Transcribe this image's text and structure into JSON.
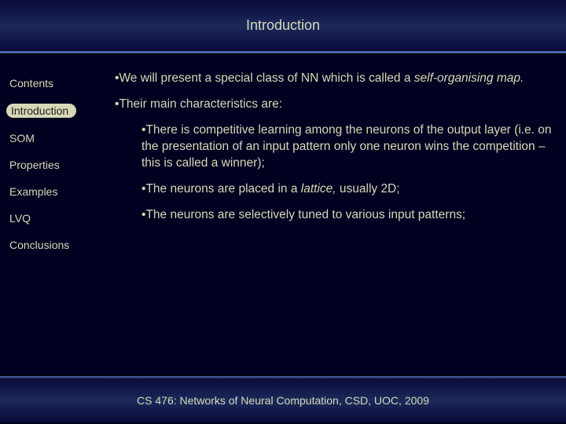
{
  "header": {
    "title": "Introduction"
  },
  "sidebar": {
    "items": [
      {
        "label": "Contents",
        "active": false
      },
      {
        "label": "Introduction",
        "active": true
      },
      {
        "label": "SOM",
        "active": false
      },
      {
        "label": "Properties",
        "active": false
      },
      {
        "label": "Examples",
        "active": false
      },
      {
        "label": "LVQ",
        "active": false
      },
      {
        "label": "Conclusions",
        "active": false
      }
    ]
  },
  "content": {
    "p1_a": "We will present a special class of NN which is called a ",
    "p1_italic": "self-organising map.",
    "p2": "Their main characteristics are:",
    "s1": "There is competitive learning among the neurons of the output layer (i.e. on the presentation of an input pattern only one neuron wins the competition – this is called a winner);",
    "s2_a": "The neurons are placed in a ",
    "s2_italic": "lattice,",
    "s2_b": " usually 2D;",
    "s3": "The neurons are selectively tuned to various input patterns;"
  },
  "footer": {
    "text": "CS 476: Networks of Neural Computation, CSD, UOC, 2009"
  },
  "colors": {
    "background": "#000020",
    "text": "#d8d8b8",
    "header_gradient_mid": "#1a2a5a",
    "separator": "#4a6aaa"
  }
}
